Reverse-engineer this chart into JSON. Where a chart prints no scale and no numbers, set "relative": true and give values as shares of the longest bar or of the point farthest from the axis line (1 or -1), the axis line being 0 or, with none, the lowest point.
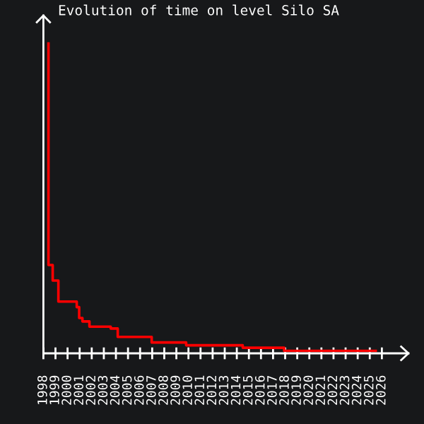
{
  "chart_data": {
    "type": "step",
    "title": "Evolution of time on level Silo SA",
    "relative": true,
    "x": [
      1998.42,
      1998.42,
      1998.77,
      1999.24,
      2000.76,
      2000.96,
      2001.23,
      2001.81,
      2003.57,
      2004.15,
      2006.96,
      2009.81,
      2014.49,
      2017.92,
      2025.49
    ],
    "series": [
      {
        "color": "#ff0000",
        "values": [
          1.0,
          0.285,
          0.235,
          0.167,
          0.149,
          0.114,
          0.103,
          0.086,
          0.08,
          0.053,
          0.035,
          0.026,
          0.018,
          0.008,
          0.008
        ]
      }
    ],
    "xlim": [
      1998,
      2028.2
    ],
    "xticks": [
      1998,
      1999,
      2000,
      2001,
      2002,
      2003,
      2004,
      2005,
      2006,
      2007,
      2008,
      2009,
      2010,
      2011,
      2012,
      2013,
      2014,
      2015,
      2016,
      2017,
      2018,
      2019,
      2020,
      2021,
      2022,
      2023,
      2024,
      2025,
      2026
    ],
    "tick_labels": "x",
    "grid": false,
    "legend": false,
    "marker": "none",
    "line_style": "solid"
  }
}
